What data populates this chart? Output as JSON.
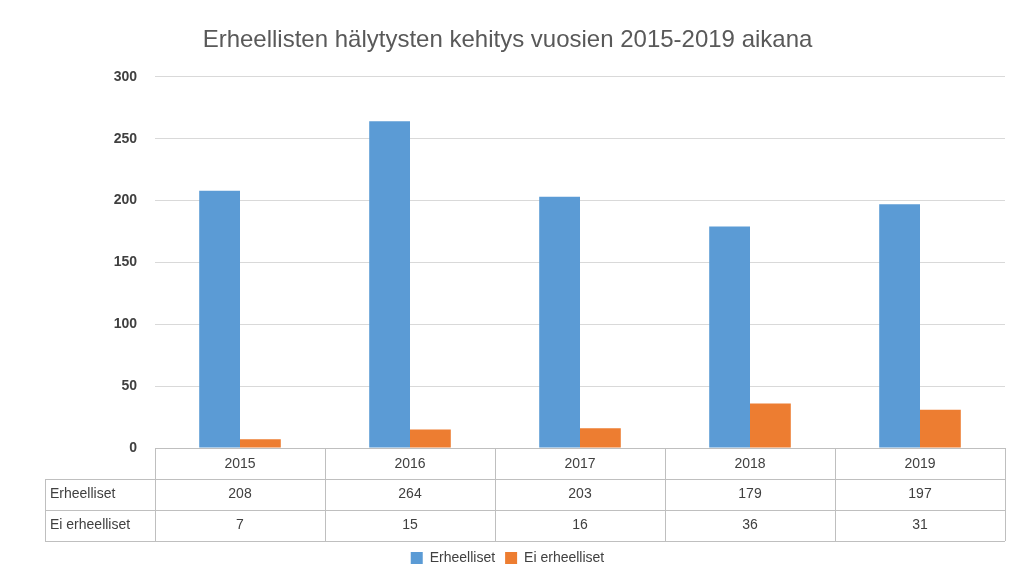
{
  "chart_data": {
    "type": "bar",
    "title": "Erheellisten hälytysten kehitys vuosien 2015-2019 aikana",
    "categories": [
      "2015",
      "2016",
      "2017",
      "2018",
      "2019"
    ],
    "series": [
      {
        "name": "Erheelliset",
        "color": "#5b9bd5",
        "values": [
          208,
          264,
          203,
          179,
          197
        ]
      },
      {
        "name": "Ei erheelliset",
        "color": "#ed7d31",
        "values": [
          7,
          15,
          16,
          36,
          31
        ]
      }
    ],
    "ylim": [
      0,
      300
    ],
    "yticks": [
      0,
      50,
      100,
      150,
      200,
      250,
      300
    ],
    "grid": "y",
    "legend": "bottom",
    "data_labels": true
  }
}
